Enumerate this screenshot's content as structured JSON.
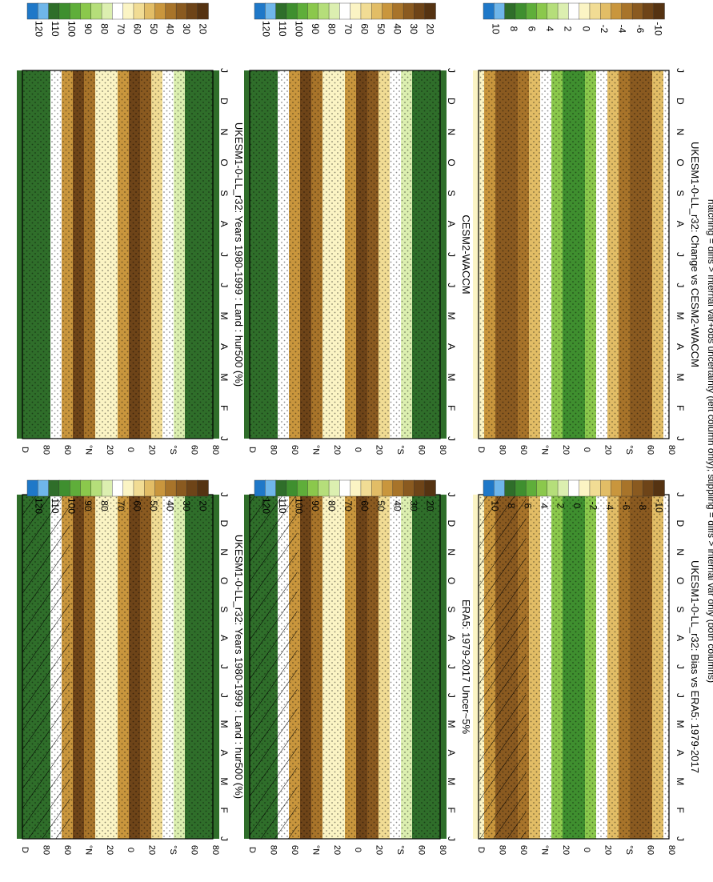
{
  "figure": {
    "footnote": "hatching = diffs > internal var+obs uncertainty (left column only); stippling = diffs > internal var only (both columns)"
  },
  "chart_data": [
    {
      "id": "p1",
      "type": "heatmap",
      "title": "UKESM1-0-LL_r32: Years 1980-1999 : Land : hur500 (%)",
      "months": [
        "J",
        "F",
        "M",
        "A",
        "M",
        "J",
        "J",
        "A",
        "S",
        "O",
        "N",
        "D",
        "J"
      ],
      "lat_ticks": [
        "D",
        "80",
        "60",
        "°N",
        "20",
        "0",
        "20",
        "°S",
        "60",
        "80"
      ],
      "colorbar_ticks": [
        "120",
        "110",
        "100",
        "90",
        "80",
        "70",
        "60",
        "50",
        "40",
        "30",
        "20"
      ],
      "colorbar_colors": [
        "#1f78c8",
        "#6fb6ea",
        "#2f6e2a",
        "#3f8f2f",
        "#5fae3a",
        "#8bc84c",
        "#b5de7a",
        "#dcefb0",
        "#ffffff",
        "#fbf4c4",
        "#f1dc94",
        "#e2bd66",
        "#c9963d",
        "#a8742a",
        "#8a5a20",
        "#6e4418",
        "#553312"
      ],
      "hatched": true,
      "stippled": true
    },
    {
      "id": "p2",
      "type": "heatmap",
      "title": "UKESM1-0-LL_r32: Years 1980-1999 : Land : hur500 (%)",
      "months": [
        "J",
        "F",
        "M",
        "A",
        "M",
        "J",
        "J",
        "A",
        "S",
        "O",
        "N",
        "D",
        "J"
      ],
      "lat_ticks": [
        "D",
        "80",
        "60",
        "°N",
        "20",
        "0",
        "20",
        "°S",
        "60",
        "80"
      ],
      "colorbar_ticks": [
        "120",
        "110",
        "100",
        "90",
        "80",
        "70",
        "60",
        "50",
        "40",
        "30",
        "20"
      ],
      "colorbar_colors": [
        "#1f78c8",
        "#6fb6ea",
        "#2f6e2a",
        "#3f8f2f",
        "#5fae3a",
        "#8bc84c",
        "#b5de7a",
        "#dcefb0",
        "#ffffff",
        "#fbf4c4",
        "#f1dc94",
        "#e2bd66",
        "#c9963d",
        "#a8742a",
        "#8a5a20",
        "#6e4418",
        "#553312"
      ],
      "hatched": false,
      "stippled": true
    },
    {
      "id": "p3",
      "type": "heatmap",
      "title": "ERA5: 1979-2017 Uncer~5%",
      "months": [
        "J",
        "F",
        "M",
        "A",
        "M",
        "J",
        "J",
        "A",
        "S",
        "O",
        "N",
        "D",
        "J"
      ],
      "lat_ticks": [
        "D",
        "80",
        "60",
        "°N",
        "20",
        "0",
        "20",
        "°S",
        "60",
        "80"
      ],
      "colorbar_ticks": [
        "120",
        "110",
        "100",
        "90",
        "80",
        "70",
        "60",
        "50",
        "40",
        "30",
        "20"
      ],
      "colorbar_colors": [
        "#1f78c8",
        "#6fb6ea",
        "#2f6e2a",
        "#3f8f2f",
        "#5fae3a",
        "#8bc84c",
        "#b5de7a",
        "#dcefb0",
        "#ffffff",
        "#fbf4c4",
        "#f1dc94",
        "#e2bd66",
        "#c9963d",
        "#a8742a",
        "#8a5a20",
        "#6e4418",
        "#553312"
      ],
      "hatched": true,
      "stippled": true
    },
    {
      "id": "p4",
      "type": "heatmap",
      "title": "CESM2-WACCM",
      "months": [
        "J",
        "F",
        "M",
        "A",
        "M",
        "J",
        "J",
        "A",
        "S",
        "O",
        "N",
        "D",
        "J"
      ],
      "lat_ticks": [
        "D",
        "80",
        "60",
        "°N",
        "20",
        "0",
        "20",
        "°S",
        "60",
        "80"
      ],
      "colorbar_ticks": [
        "120",
        "110",
        "100",
        "90",
        "80",
        "70",
        "60",
        "50",
        "40",
        "30",
        "20"
      ],
      "colorbar_colors": [
        "#1f78c8",
        "#6fb6ea",
        "#2f6e2a",
        "#3f8f2f",
        "#5fae3a",
        "#8bc84c",
        "#b5de7a",
        "#dcefb0",
        "#ffffff",
        "#fbf4c4",
        "#f1dc94",
        "#e2bd66",
        "#c9963d",
        "#a8742a",
        "#8a5a20",
        "#6e4418",
        "#553312"
      ],
      "hatched": false,
      "stippled": true
    },
    {
      "id": "p5",
      "type": "heatmap",
      "title": "UKESM1-0-LL_r32: Bias vs ERA5: 1979-2017",
      "months": [
        "J",
        "F",
        "M",
        "A",
        "M",
        "J",
        "J",
        "A",
        "S",
        "O",
        "N",
        "D",
        "J"
      ],
      "lat_ticks": [
        "D",
        "80",
        "60",
        "°N",
        "20",
        "0",
        "20",
        "°S",
        "60",
        "80"
      ],
      "colorbar_ticks": [
        "10",
        "8",
        "6",
        "4",
        "2",
        "0",
        "-2",
        "-4",
        "-6",
        "-8",
        "-10"
      ],
      "colorbar_colors": [
        "#1f78c8",
        "#6fb6ea",
        "#2f6e2a",
        "#3f8f2f",
        "#5fae3a",
        "#8bc84c",
        "#b5de7a",
        "#dcefb0",
        "#ffffff",
        "#fbf4c4",
        "#f1dc94",
        "#e2bd66",
        "#c9963d",
        "#a8742a",
        "#8a5a20",
        "#6e4418",
        "#553312"
      ],
      "hatched": true,
      "stippled": true
    },
    {
      "id": "p6",
      "type": "heatmap",
      "title": "UKESM1-0-LL_r32: Change vs CESM2-WACCM",
      "months": [
        "J",
        "F",
        "M",
        "A",
        "M",
        "J",
        "J",
        "A",
        "S",
        "O",
        "N",
        "D",
        "J"
      ],
      "lat_ticks": [
        "D",
        "80",
        "60",
        "°N",
        "20",
        "0",
        "20",
        "°S",
        "60",
        "80"
      ],
      "colorbar_ticks": [
        "10",
        "8",
        "6",
        "4",
        "2",
        "0",
        "-2",
        "-4",
        "-6",
        "-10"
      ],
      "colorbar_colors": [
        "#1f78c8",
        "#6fb6ea",
        "#2f6e2a",
        "#3f8f2f",
        "#5fae3a",
        "#8bc84c",
        "#b5de7a",
        "#dcefb0",
        "#ffffff",
        "#fbf4c4",
        "#f1dc94",
        "#e2bd66",
        "#c9963d",
        "#a8742a",
        "#8a5a20",
        "#6e4418",
        "#553312"
      ],
      "hatched": false,
      "stippled": true
    }
  ]
}
